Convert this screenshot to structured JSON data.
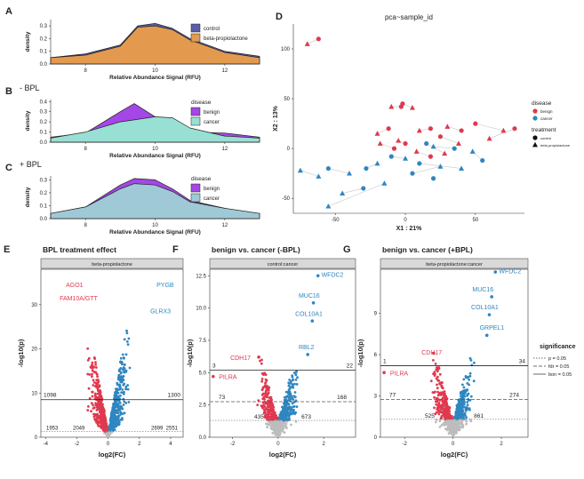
{
  "panels": {
    "A": {
      "letter": "A",
      "xlabel": "Relative Abundance Signal (RFU)",
      "ylabel": "density",
      "xticks": [
        "8",
        "10",
        "12"
      ],
      "yticks": [
        "0.0",
        "0.1",
        "0.2",
        "0.3"
      ],
      "legend": [
        "control",
        "beta-propiolactone"
      ]
    },
    "B": {
      "letter": "B",
      "subtitle": "- BPL",
      "xlabel": "Relative Abundance Signal (RFU)",
      "ylabel": "density",
      "xticks": [
        "8",
        "10",
        "12"
      ],
      "yticks": [
        "0.0",
        "0.1",
        "0.2",
        "0.3",
        "0.4"
      ],
      "legend_title": "disease",
      "legend": [
        "benign",
        "cancer"
      ]
    },
    "C": {
      "letter": "C",
      "subtitle": "+ BPL",
      "xlabel": "Relative Abundance Signal (RFU)",
      "ylabel": "density",
      "xticks": [
        "8",
        "10",
        "12"
      ],
      "yticks": [
        "0.0",
        "0.1",
        "0.2",
        "0.3"
      ],
      "legend_title": "disease",
      "legend": [
        "benign",
        "cancer"
      ]
    },
    "D": {
      "letter": "D",
      "title": "pca~sample_id",
      "xlabel": "X1 : 21%",
      "ylabel": "X2 : 13%",
      "xticks": [
        "-50",
        "0",
        "50"
      ],
      "yticks": [
        "-50",
        "0",
        "50",
        "100"
      ],
      "legend_disease_title": "disease",
      "legend_disease": [
        "benign",
        "cancer"
      ],
      "legend_treatment_title": "treatment",
      "legend_treatment": [
        "control",
        "beta-propiolactone"
      ]
    },
    "E": {
      "letter": "E",
      "title": "BPL treatment effect",
      "strip": "beta-propiolactone",
      "xlabel": "log2(FC)",
      "ylabel": "-log10(p)",
      "xticks": [
        "-4",
        "-2",
        "0",
        "2",
        "4"
      ],
      "yticks": [
        "0",
        "10",
        "20",
        "30"
      ],
      "counts": {
        "left_bon": "1098",
        "right_bon": "1300",
        "left_p_a": "1953",
        "left_p_b": "2049",
        "right_p_a": "2699",
        "right_p_b": "2551"
      },
      "labels_red": [
        "AGO1",
        "FAM10A/GTT"
      ],
      "labels_blue": [
        "PYGB",
        "GLRX3"
      ]
    },
    "F": {
      "letter": "F",
      "title": "benign vs. cancer (-BPL)",
      "strip": "control:cancer",
      "xlabel": "log2(FC)",
      "ylabel": "-log10(p)",
      "xticks": [
        "-2",
        "0",
        "2"
      ],
      "yticks": [
        "0.0",
        "2.5",
        "5.0",
        "7.5",
        "10.0",
        "12.5"
      ],
      "counts": {
        "left_bon": "3",
        "right_bon": "22",
        "left_fdr": "73",
        "right_fdr": "168",
        "left_p": "435",
        "right_p": "673"
      },
      "labels_red": [
        "CDH17",
        "PILRA"
      ],
      "labels_blue": [
        "WFDC2",
        "MUC16",
        "COL10A1",
        "RBL2"
      ]
    },
    "G": {
      "letter": "G",
      "title": "benign vs. cancer (+BPL)",
      "strip": "beta-propiolactone:cancer",
      "xlabel": "log2(FC)",
      "ylabel": "-log10(p)",
      "xticks": [
        "-2",
        "0",
        "2"
      ],
      "yticks": [
        "0",
        "3",
        "6",
        "9"
      ],
      "counts": {
        "left_bon": "1",
        "right_bon": "34",
        "left_fdr": "77",
        "right_fdr": "274",
        "left_p": "525",
        "right_p": "861"
      },
      "labels_red": [
        "CDH17",
        "PILRA"
      ],
      "labels_blue": [
        "WFDC2",
        "MUC16",
        "COL10A1",
        "GRPEL1"
      ]
    }
  },
  "significance_legend": {
    "title": "significance",
    "items": [
      "p = 0.05",
      "fdr = 0.05",
      "bon = 0.05"
    ]
  },
  "colors": {
    "benign": "#e0394f",
    "cancer": "#2f86c0",
    "control": "#5b5ea6",
    "bpl": "#e39a4f",
    "purple": "#a447e6",
    "cyan": "#98e0d3",
    "teal": "#9fc9d6",
    "grey": "#bdbdbd",
    "strip": "#d9d9d9"
  },
  "chart_data": [
    {
      "panel": "A",
      "type": "area",
      "x": [
        7,
        8,
        9,
        9.5,
        10,
        10.5,
        11,
        12,
        13
      ],
      "series": [
        {
          "name": "control",
          "values": [
            0.05,
            0.08,
            0.15,
            0.3,
            0.32,
            0.28,
            0.2,
            0.1,
            0.06
          ]
        },
        {
          "name": "beta-propiolactone",
          "values": [
            0.05,
            0.07,
            0.14,
            0.29,
            0.3,
            0.27,
            0.19,
            0.09,
            0.05
          ]
        }
      ],
      "xlabel": "Relative Abundance Signal (RFU)",
      "ylabel": "density",
      "ylim": [
        0,
        0.35
      ]
    },
    {
      "panel": "B",
      "type": "area",
      "x": [
        7,
        8,
        9,
        9.4,
        10,
        10.5,
        11,
        12,
        13
      ],
      "series": [
        {
          "name": "benign",
          "values": [
            0.05,
            0.09,
            0.3,
            0.38,
            0.25,
            0.14,
            0.1,
            0.09,
            0.05
          ]
        },
        {
          "name": "cancer",
          "values": [
            0.04,
            0.1,
            0.2,
            0.22,
            0.25,
            0.24,
            0.14,
            0.06,
            0.04
          ]
        }
      ],
      "xlabel": "Relative Abundance Signal (RFU)",
      "ylabel": "density",
      "ylim": [
        0,
        0.42
      ]
    },
    {
      "panel": "C",
      "type": "area",
      "x": [
        7,
        8,
        9,
        9.4,
        10,
        10.5,
        11,
        12,
        13
      ],
      "series": [
        {
          "name": "benign",
          "values": [
            0.04,
            0.09,
            0.26,
            0.31,
            0.3,
            0.23,
            0.14,
            0.08,
            0.04
          ]
        },
        {
          "name": "cancer",
          "values": [
            0.04,
            0.09,
            0.23,
            0.27,
            0.26,
            0.21,
            0.13,
            0.08,
            0.04
          ]
        }
      ],
      "xlabel": "Relative Abundance Signal (RFU)",
      "ylabel": "density",
      "ylim": [
        0,
        0.33
      ]
    },
    {
      "panel": "D",
      "type": "scatter",
      "title": "pca~sample_id",
      "xlabel": "X1 : 21%",
      "ylabel": "X2 : 13%",
      "xlim": [
        -80,
        85
      ],
      "ylim": [
        -65,
        125
      ],
      "points": [
        {
          "x": -70,
          "y": 105,
          "d": "benign",
          "t": "bpl"
        },
        {
          "x": -62,
          "y": 110,
          "d": "benign",
          "t": "control"
        },
        {
          "x": -10,
          "y": 42,
          "d": "benign",
          "t": "bpl"
        },
        {
          "x": -3,
          "y": 42,
          "d": "benign",
          "t": "control"
        },
        {
          "x": -2,
          "y": 45,
          "d": "benign",
          "t": "control"
        },
        {
          "x": 5,
          "y": 41,
          "d": "benign",
          "t": "bpl"
        },
        {
          "x": -12,
          "y": 20,
          "d": "benign",
          "t": "control"
        },
        {
          "x": -20,
          "y": 15,
          "d": "benign",
          "t": "bpl"
        },
        {
          "x": 10,
          "y": 18,
          "d": "benign",
          "t": "bpl"
        },
        {
          "x": 18,
          "y": 20,
          "d": "benign",
          "t": "control"
        },
        {
          "x": 30,
          "y": 22,
          "d": "benign",
          "t": "bpl"
        },
        {
          "x": 40,
          "y": 18,
          "d": "benign",
          "t": "control"
        },
        {
          "x": 50,
          "y": 25,
          "d": "benign",
          "t": "control"
        },
        {
          "x": 70,
          "y": 18,
          "d": "benign",
          "t": "bpl"
        },
        {
          "x": 78,
          "y": 20,
          "d": "benign",
          "t": "control"
        },
        {
          "x": 60,
          "y": 10,
          "d": "benign",
          "t": "bpl"
        },
        {
          "x": 25,
          "y": 12,
          "d": "benign",
          "t": "control"
        },
        {
          "x": 38,
          "y": 5,
          "d": "benign",
          "t": "bpl"
        },
        {
          "x": -5,
          "y": 8,
          "d": "benign",
          "t": "bpl"
        },
        {
          "x": 0,
          "y": 5,
          "d": "benign",
          "t": "control"
        },
        {
          "x": -18,
          "y": 5,
          "d": "benign",
          "t": "bpl"
        },
        {
          "x": -8,
          "y": 0,
          "d": "benign",
          "t": "control"
        },
        {
          "x": 8,
          "y": -3,
          "d": "benign",
          "t": "bpl"
        },
        {
          "x": 18,
          "y": -8,
          "d": "benign",
          "t": "control"
        },
        {
          "x": 28,
          "y": -5,
          "d": "benign",
          "t": "bpl"
        },
        {
          "x": 15,
          "y": 5,
          "d": "cancer",
          "t": "control"
        },
        {
          "x": 20,
          "y": 2,
          "d": "cancer",
          "t": "bpl"
        },
        {
          "x": 35,
          "y": 0,
          "d": "cancer",
          "t": "control"
        },
        {
          "x": 48,
          "y": -3,
          "d": "cancer",
          "t": "bpl"
        },
        {
          "x": 55,
          "y": -12,
          "d": "cancer",
          "t": "control"
        },
        {
          "x": 40,
          "y": -20,
          "d": "cancer",
          "t": "bpl"
        },
        {
          "x": 10,
          "y": -15,
          "d": "cancer",
          "t": "control"
        },
        {
          "x": 0,
          "y": -10,
          "d": "cancer",
          "t": "bpl"
        },
        {
          "x": -10,
          "y": -8,
          "d": "cancer",
          "t": "control"
        },
        {
          "x": -20,
          "y": -15,
          "d": "cancer",
          "t": "bpl"
        },
        {
          "x": -28,
          "y": -20,
          "d": "cancer",
          "t": "control"
        },
        {
          "x": -40,
          "y": -25,
          "d": "cancer",
          "t": "bpl"
        },
        {
          "x": -55,
          "y": -20,
          "d": "cancer",
          "t": "control"
        },
        {
          "x": -75,
          "y": -22,
          "d": "cancer",
          "t": "bpl"
        },
        {
          "x": -62,
          "y": -28,
          "d": "cancer",
          "t": "bpl"
        },
        {
          "x": -30,
          "y": -40,
          "d": "cancer",
          "t": "control"
        },
        {
          "x": -45,
          "y": -45,
          "d": "cancer",
          "t": "bpl"
        },
        {
          "x": -55,
          "y": -58,
          "d": "cancer",
          "t": "bpl"
        },
        {
          "x": -15,
          "y": -35,
          "d": "cancer",
          "t": "bpl"
        },
        {
          "x": 5,
          "y": -25,
          "d": "cancer",
          "t": "control"
        },
        {
          "x": 25,
          "y": -18,
          "d": "cancer",
          "t": "bpl"
        },
        {
          "x": 20,
          "y": -30,
          "d": "cancer",
          "t": "control"
        }
      ]
    }
  ]
}
